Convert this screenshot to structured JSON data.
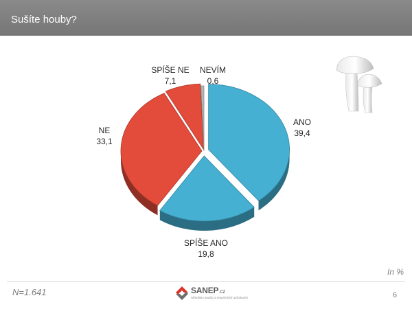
{
  "header": {
    "title": "Sušíte houby?"
  },
  "footer": {
    "unit_note": "In %",
    "sample_note": "N=1.641",
    "logo_name": "SANEP",
    "logo_tld": ".cz",
    "logo_tagline": "Středisko analýz a empirických průzkumů",
    "page_number": "6"
  },
  "chart_data": {
    "type": "pie",
    "title": "",
    "slices": [
      {
        "label": "ANO",
        "value": 39.4,
        "display": "39,4",
        "color": "#45b0d2"
      },
      {
        "label": "SPÍŠE ANO",
        "value": 19.8,
        "display": "19,8",
        "color": "#45b0d2"
      },
      {
        "label": "NE",
        "value": 33.1,
        "display": "33,1",
        "color": "#e34b3a"
      },
      {
        "label": "SPÍŠE NE",
        "value": 7.1,
        "display": "7,1",
        "color": "#e34b3a"
      },
      {
        "label": "NEVÍM",
        "value": 0.6,
        "display": "0,6",
        "color": "#b5b5b5"
      }
    ]
  }
}
